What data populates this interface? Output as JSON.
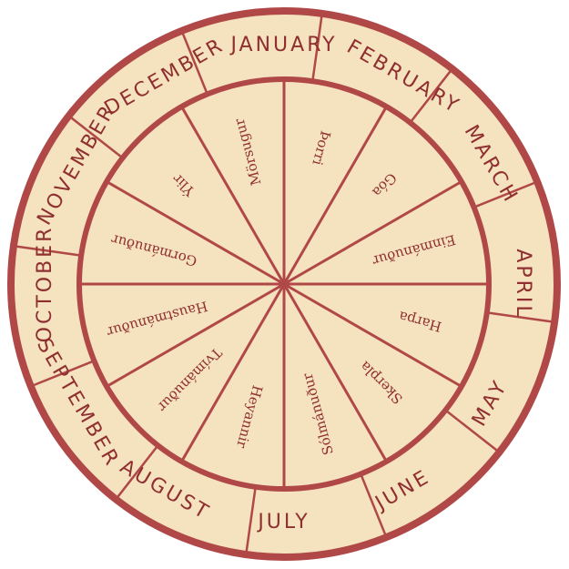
{
  "colors": {
    "paper": "#f5e2bf",
    "ink": "#b04848",
    "text": "#8f2f2f"
  },
  "gregorian_months": [
    {
      "name": "JANUARY",
      "angle": 0
    },
    {
      "name": "FEBRUARY",
      "angle": 30
    },
    {
      "name": "MARCH",
      "angle": 60
    },
    {
      "name": "APRIL",
      "angle": 90
    },
    {
      "name": "MAY",
      "angle": 120
    },
    {
      "name": "JUNE",
      "angle": 150
    },
    {
      "name": "JULY",
      "angle": 180
    },
    {
      "name": "AUGUST",
      "angle": 210
    },
    {
      "name": "SEPTEMBER",
      "angle": 240
    },
    {
      "name": "OCTOBER",
      "angle": 270
    },
    {
      "name": "NOVEMBER",
      "angle": 300
    },
    {
      "name": "DECEMBER",
      "angle": 330
    }
  ],
  "icelandic_months": [
    {
      "name": "Þorri",
      "angle": 15
    },
    {
      "name": "Góa",
      "angle": 45
    },
    {
      "name": "Einmánuður",
      "angle": 75
    },
    {
      "name": "Harpa",
      "angle": 105
    },
    {
      "name": "Skerpla",
      "angle": 135
    },
    {
      "name": "Sólmánuður",
      "angle": 165
    },
    {
      "name": "Heyannir",
      "angle": 195
    },
    {
      "name": "Tvímánuður",
      "angle": 225
    },
    {
      "name": "Haustmánuður",
      "angle": 255
    },
    {
      "name": "Gormánuður",
      "angle": 285
    },
    {
      "name": "Ýlir",
      "angle": 315
    },
    {
      "name": "Mörsugur",
      "angle": 345
    }
  ]
}
